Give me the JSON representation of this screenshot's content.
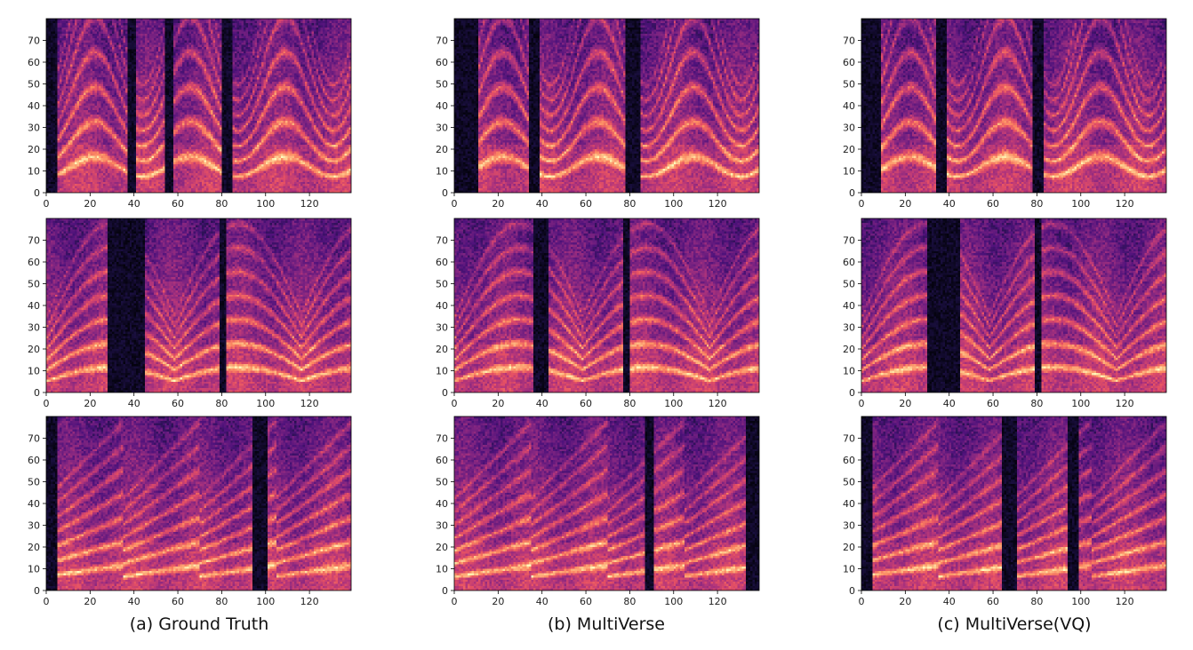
{
  "figure": {
    "captions": [
      "(a) Ground Truth",
      "(b) MultiVerse",
      "(c) MultiVerse(VQ)"
    ]
  },
  "colors": {
    "colormap": "magma",
    "background": "#ffffff"
  },
  "chart_data": {
    "type": "heatmap",
    "description_kind": "mel-spectrogram grid, 3 rows x 3 columns",
    "xlim": [
      0,
      139
    ],
    "ylim": [
      0,
      80
    ],
    "xticks": [
      0,
      20,
      40,
      60,
      80,
      100,
      120
    ],
    "yticks": [
      0,
      10,
      20,
      30,
      40,
      50,
      60,
      70
    ],
    "columns": [
      "(a) Ground Truth",
      "(b) MultiVerse",
      "(c) MultiVerse(VQ)"
    ],
    "panels": [
      {
        "row": 0,
        "col": 0,
        "seed": 11,
        "contour": "u",
        "silence": [
          [
            0,
            4
          ],
          [
            37,
            40
          ],
          [
            54,
            57
          ],
          [
            80,
            84
          ]
        ]
      },
      {
        "row": 0,
        "col": 1,
        "seed": 12,
        "contour": "u",
        "silence": [
          [
            0,
            10
          ],
          [
            34,
            38
          ],
          [
            78,
            84
          ]
        ]
      },
      {
        "row": 0,
        "col": 2,
        "seed": 13,
        "contour": "u",
        "silence": [
          [
            0,
            8
          ],
          [
            34,
            38
          ],
          [
            78,
            82
          ]
        ]
      },
      {
        "row": 1,
        "col": 0,
        "seed": 21,
        "contour": "v",
        "silence": [
          [
            28,
            44
          ],
          [
            79,
            81
          ]
        ]
      },
      {
        "row": 1,
        "col": 1,
        "seed": 22,
        "contour": "v",
        "silence": [
          [
            36,
            42
          ],
          [
            77,
            79
          ]
        ]
      },
      {
        "row": 1,
        "col": 2,
        "seed": 23,
        "contour": "v",
        "silence": [
          [
            30,
            44
          ],
          [
            79,
            81
          ]
        ]
      },
      {
        "row": 2,
        "col": 0,
        "seed": 31,
        "contour": "rise",
        "silence": [
          [
            0,
            4
          ],
          [
            94,
            100
          ]
        ]
      },
      {
        "row": 2,
        "col": 1,
        "seed": 32,
        "contour": "rise",
        "silence": [
          [
            87,
            90
          ],
          [
            133,
            139
          ]
        ]
      },
      {
        "row": 2,
        "col": 2,
        "seed": 33,
        "contour": "rise",
        "silence": [
          [
            0,
            4
          ],
          [
            64,
            70
          ],
          [
            94,
            98
          ]
        ]
      }
    ]
  }
}
